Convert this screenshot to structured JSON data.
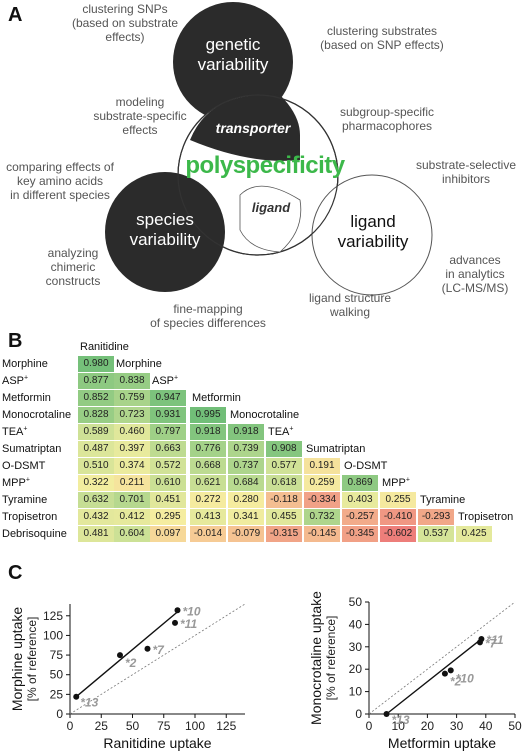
{
  "panels": {
    "a": "A",
    "b": "B",
    "c": "C"
  },
  "venn": {
    "circle1": "genetic variability",
    "circle1_lines": [
      "genetic",
      "variability"
    ],
    "circle2": "species variability",
    "circle2_lines": [
      "species",
      "variability"
    ],
    "circle3": "ligand variability",
    "circle3_lines": [
      "ligand",
      "variability"
    ],
    "center_top": "transporter",
    "center_title": "polyspecificity",
    "center_bottom": "ligand",
    "colors": {
      "dark": "#2b2b2b",
      "accent": "#3cb84a"
    }
  },
  "annotations": [
    {
      "key": "a1",
      "lines": [
        "clustering SNPs",
        "(based on substrate",
        "effects)"
      ]
    },
    {
      "key": "a2",
      "lines": [
        "clustering substrates",
        "(based on SNP effects)"
      ]
    },
    {
      "key": "a3",
      "lines": [
        "modeling",
        "substrate-specific",
        "effects"
      ]
    },
    {
      "key": "a4",
      "lines": [
        "subgroup-specific",
        "pharmacophores"
      ]
    },
    {
      "key": "a5",
      "lines": [
        "comparing effects of",
        "key amino acids",
        "in different species"
      ]
    },
    {
      "key": "a6",
      "lines": [
        "substrate-selective",
        "inhibitors"
      ]
    },
    {
      "key": "a7",
      "lines": [
        "analyzing",
        "chimeric",
        "constructs"
      ]
    },
    {
      "key": "a8",
      "lines": [
        "advances",
        "in analytics",
        "(LC-MS/MS)"
      ]
    },
    {
      "key": "a9",
      "lines": [
        "fine-mapping",
        "of species differences"
      ]
    },
    {
      "key": "a10",
      "lines": [
        "ligand structure",
        "walking"
      ]
    }
  ],
  "matrix": {
    "labels": [
      {
        "text": "Ranitidine",
        "sup": ""
      },
      {
        "text": "Morphine",
        "sup": ""
      },
      {
        "text": "ASP",
        "sup": "+"
      },
      {
        "text": "Metformin",
        "sup": ""
      },
      {
        "text": "Monocrotaline",
        "sup": ""
      },
      {
        "text": "TEA",
        "sup": "+"
      },
      {
        "text": "Sumatriptan",
        "sup": ""
      },
      {
        "text": "O-DSMT",
        "sup": ""
      },
      {
        "text": "MPP",
        "sup": "+"
      },
      {
        "text": "Tyramine",
        "sup": ""
      },
      {
        "text": "Tropisetron",
        "sup": ""
      },
      {
        "text": "Debrisoquine",
        "sup": ""
      }
    ],
    "rows": [
      [
        "0.980"
      ],
      [
        "0.877",
        "0.838"
      ],
      [
        "0.852",
        "0.759",
        "0.947"
      ],
      [
        "0.828",
        "0.723",
        "0.931",
        "0.995"
      ],
      [
        "0.589",
        "0.460",
        "0.797",
        "0.918",
        "0.918"
      ],
      [
        "0.487",
        "0.397",
        "0.663",
        "0.776",
        "0.739",
        "0.908"
      ],
      [
        "0.510",
        "0.374",
        "0.572",
        "0.668",
        "0.737",
        "0.577",
        "0.191"
      ],
      [
        "0.322",
        "0.211",
        "0.610",
        "0.621",
        "0.684",
        "0.618",
        "0.259",
        "0.869"
      ],
      [
        "0.632",
        "0.701",
        "0.451",
        "0.272",
        "0.280",
        "-0.118",
        "-0.334",
        "0.403",
        "0.255"
      ],
      [
        "0.432",
        "0.412",
        "0.295",
        "0.413",
        "0.341",
        "0.455",
        "0.732",
        "-0.257",
        "-0.410",
        "-0.293"
      ],
      [
        "0.481",
        "0.604",
        "0.097",
        "-0.014",
        "-0.079",
        "-0.315",
        "-0.145",
        "-0.345",
        "-0.602",
        "0.537",
        "0.425"
      ]
    ]
  },
  "chart_data": [
    {
      "type": "scatter",
      "xlabel": "Ranitidine uptake",
      "xlabel2": "[% of reference]",
      "ylabel": "Morphine uptake",
      "ylabel2": "[% of reference]",
      "xlim": [
        0,
        140
      ],
      "ylim": [
        0,
        140
      ],
      "xticks": [
        "0",
        "25",
        "50",
        "75",
        "100",
        "125"
      ],
      "yticks": [
        "0",
        "25",
        "50",
        "75",
        "100",
        "125"
      ],
      "points": [
        {
          "x": 5,
          "y": 22,
          "label": "*13"
        },
        {
          "x": 40,
          "y": 75,
          "label": "*2"
        },
        {
          "x": 62,
          "y": 83,
          "label": "*7"
        },
        {
          "x": 84,
          "y": 116,
          "label": "*11"
        },
        {
          "x": 86,
          "y": 132,
          "label": "*10"
        }
      ],
      "fit": [
        [
          5,
          22
        ],
        [
          86,
          130
        ]
      ],
      "identity": true
    },
    {
      "type": "scatter",
      "xlabel": "Metformin uptake",
      "xlabel2": "[% of reference]",
      "ylabel": "Monocrotaline uptake",
      "ylabel2": "[% of reference]",
      "xlim": [
        0,
        50
      ],
      "ylim": [
        0,
        50
      ],
      "xticks": [
        "0",
        "10",
        "20",
        "30",
        "40",
        "50"
      ],
      "yticks": [
        "0",
        "10",
        "20",
        "30",
        "40",
        "50"
      ],
      "points": [
        {
          "x": 6,
          "y": 0,
          "label": "*13"
        },
        {
          "x": 26,
          "y": 18,
          "label": "*2"
        },
        {
          "x": 28,
          "y": 19.5,
          "label": "*10"
        },
        {
          "x": 38,
          "y": 32,
          "label": "*7"
        },
        {
          "x": 38.5,
          "y": 33.5,
          "label": "*11"
        }
      ],
      "fit": [
        [
          6,
          0
        ],
        [
          38.5,
          33.5
        ]
      ],
      "identity": true
    }
  ]
}
